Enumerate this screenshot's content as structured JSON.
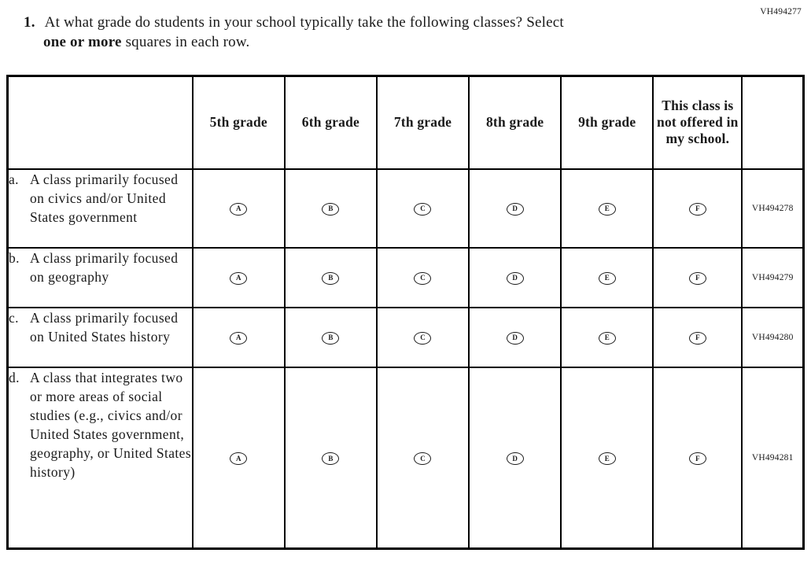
{
  "meta": {
    "top_right_code": "VH494277"
  },
  "question": {
    "number": "1.",
    "line1": "At what grade do students in your school typically take the following classes? Select",
    "line2_bold": "one or more",
    "line2_rest": " squares in each row."
  },
  "table": {
    "columns": [
      "5th grade",
      "6th grade",
      "7th grade",
      "8th grade",
      "9th grade",
      "This class is not offered in my school."
    ],
    "options": [
      "A",
      "B",
      "C",
      "D",
      "E",
      "F"
    ],
    "rows": [
      {
        "letter": "a.",
        "label": "A class primarily focused on civics and/or United States government",
        "code": "VH494278"
      },
      {
        "letter": "b.",
        "label": "A class primarily focused on geography",
        "code": "VH494279"
      },
      {
        "letter": "c.",
        "label": "A class primarily focused on United States history",
        "code": "VH494280"
      },
      {
        "letter": "d.",
        "label": "A class that integrates two or more areas of social studies (e.g., civics and/or United States government, geography, or United States history)",
        "code": "VH494281"
      }
    ]
  }
}
